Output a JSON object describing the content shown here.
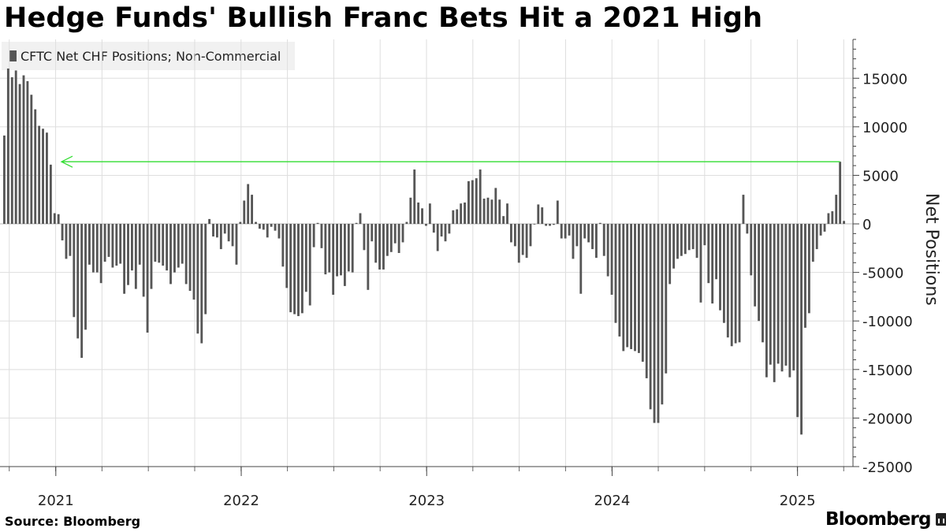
{
  "chart_data": {
    "type": "bar",
    "title": "Hedge Funds' Bullish Franc Bets Hit a 2021 High",
    "ylabel": "Net Positions",
    "ylim": [
      -25000,
      19000
    ],
    "yticks": [
      15000,
      10000,
      5000,
      0,
      -5000,
      -10000,
      -15000,
      -20000,
      -25000
    ],
    "x_tick_labels": [
      "2021",
      "2022",
      "2023",
      "2024",
      "2025"
    ],
    "x_tick_years": [
      2021,
      2022,
      2023,
      2024,
      2025
    ],
    "x_start": 2020.7,
    "x_end": 2025.3,
    "legend": "top-left",
    "grid": true,
    "colors": {
      "bar": "#565656",
      "grid": "#dedede",
      "annotation": "#33dd33"
    },
    "series": [
      {
        "name": "CFTC Net CHF Positions; Non-Commercial",
        "values": [
          9100,
          16000,
          15100,
          15800,
          14400,
          15300,
          14700,
          13300,
          11800,
          10100,
          9800,
          9400,
          6100,
          1100,
          1000,
          -1700,
          -3600,
          -3300,
          -9600,
          -11800,
          -13800,
          -10900,
          -4200,
          -5000,
          -5000,
          -6100,
          -3900,
          -3400,
          -4500,
          -4300,
          -4100,
          -7200,
          -6300,
          -4800,
          -6700,
          -4200,
          -7500,
          -11200,
          -6700,
          -3900,
          -4000,
          -4300,
          -4800,
          -6200,
          -5000,
          -4500,
          -4100,
          -6200,
          -6900,
          -7800,
          -11300,
          -12300,
          -9300,
          500,
          -1300,
          -1400,
          -2600,
          -1000,
          -1800,
          -2300,
          -4200,
          200,
          2400,
          4100,
          3000,
          200,
          -500,
          -600,
          -1400,
          -300,
          -700,
          -1500,
          -4400,
          -6600,
          -9100,
          -9300,
          -9500,
          -9200,
          -7000,
          -8400,
          -2400,
          100,
          -2500,
          -5200,
          -5000,
          -7300,
          -5400,
          -5300,
          -6400,
          -4900,
          -5000,
          100,
          1100,
          -2700,
          -6800,
          -1800,
          -4000,
          -4700,
          -4700,
          -3300,
          -2900,
          -2000,
          -3000,
          -1900,
          200,
          2700,
          5600,
          2200,
          1600,
          -200,
          2100,
          -900,
          -2800,
          -1300,
          -1800,
          -1000,
          1400,
          1500,
          2100,
          2200,
          4400,
          4500,
          4700,
          5600,
          2600,
          2700,
          2500,
          3700,
          2500,
          800,
          2100,
          -1900,
          -2300,
          -4000,
          -3200,
          -3500,
          -2300,
          0,
          2000,
          1700,
          -200,
          -200,
          -100,
          2400,
          -1500,
          -1500,
          -1200,
          -3600,
          -2300,
          -7200,
          -1500,
          -1900,
          -2600,
          -3500,
          100,
          -3300,
          -5400,
          -7300,
          -10200,
          -11600,
          -13100,
          -12700,
          -12900,
          -13100,
          -13300,
          -14200,
          -15900,
          -19100,
          -20500,
          -20500,
          -18600,
          -15400,
          -6200,
          -4600,
          -3600,
          -3300,
          -3100,
          -2700,
          -2600,
          -3500,
          -8100,
          -2200,
          -6100,
          -8200,
          -5700,
          -8900,
          -10200,
          -11700,
          -12600,
          -12300,
          -12200,
          3000,
          -1000,
          -5300,
          -8500,
          -10000,
          -12200,
          -15800,
          -14500,
          -16300,
          -14400,
          -15200,
          -14600,
          -15800,
          -15100,
          -19900,
          -21700,
          -10700,
          -9200,
          -3900,
          -2600,
          -1200,
          -800,
          1100,
          1300,
          3000,
          6400,
          300
        ]
      }
    ],
    "annotation": {
      "type": "arrow-line",
      "value": 6400,
      "direction": "left"
    }
  },
  "footer": {
    "source": "Source: Bloomberg",
    "brand": "Bloomberg"
  }
}
